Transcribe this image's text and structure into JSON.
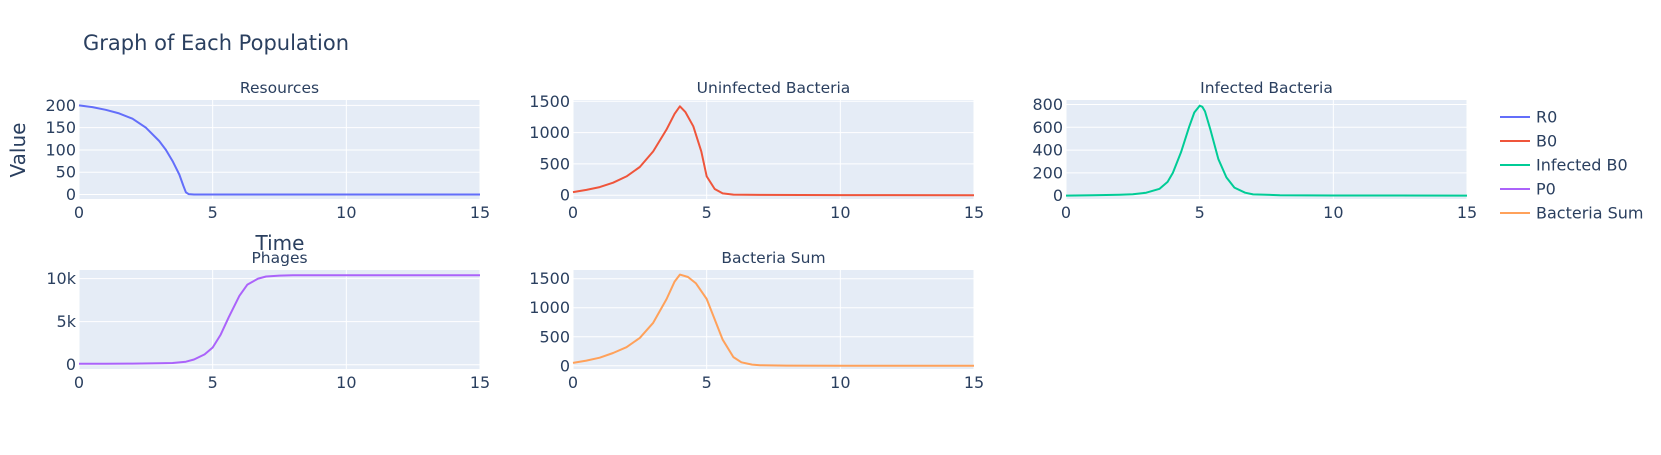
{
  "title": "Graph of Each Population",
  "x_axis_title": "Time",
  "y_axis_title": "Value",
  "colors": {
    "plot_bg": "#e5ecf6",
    "grid": "#ffffff",
    "text": "#2a3f5f"
  },
  "legend": [
    {
      "name": "R0",
      "color": "#636efa"
    },
    {
      "name": "B0",
      "color": "#ef553b"
    },
    {
      "name": "Infected B0",
      "color": "#00cc96"
    },
    {
      "name": "P0",
      "color": "#ab63fa"
    },
    {
      "name": "Bacteria Sum",
      "color": "#ffa15a"
    }
  ],
  "chart_data": [
    {
      "type": "line",
      "title": "Resources",
      "series": [
        {
          "name": "R0",
          "color": "#636efa",
          "x": [
            0,
            0.5,
            1,
            1.5,
            2,
            2.5,
            3,
            3.25,
            3.5,
            3.75,
            3.9,
            4,
            4.1,
            4.3,
            5,
            10,
            15
          ],
          "y": [
            200,
            196,
            190,
            182,
            170,
            150,
            120,
            100,
            75,
            45,
            20,
            5,
            1,
            0,
            0,
            0,
            0
          ]
        }
      ],
      "xlim": [
        0,
        15
      ],
      "ylim": [
        -10,
        212
      ],
      "xticks": [
        0,
        5,
        10,
        15
      ],
      "xtick_labels": [
        "0",
        "5",
        "10",
        "15"
      ],
      "yticks": [
        0,
        50,
        100,
        150,
        200
      ],
      "ytick_labels": [
        "0",
        "50",
        "100",
        "150",
        "200"
      ]
    },
    {
      "type": "line",
      "title": "Uninfected Bacteria",
      "series": [
        {
          "name": "B0",
          "color": "#ef553b",
          "x": [
            0,
            0.5,
            1,
            1.5,
            2,
            2.5,
            3,
            3.5,
            3.8,
            4,
            4.2,
            4.5,
            4.8,
            5,
            5.3,
            5.6,
            6,
            7,
            10,
            15
          ],
          "y": [
            50,
            85,
            130,
            200,
            300,
            450,
            700,
            1050,
            1300,
            1420,
            1330,
            1100,
            700,
            300,
            100,
            30,
            10,
            5,
            2,
            0
          ]
        }
      ],
      "xlim": [
        0,
        15
      ],
      "ylim": [
        -60,
        1520
      ],
      "xticks": [
        0,
        5,
        10,
        15
      ],
      "xtick_labels": [
        "0",
        "5",
        "10",
        "15"
      ],
      "yticks": [
        0,
        500,
        1000,
        1500
      ],
      "ytick_labels": [
        "0",
        "500",
        "1000",
        "1500"
      ]
    },
    {
      "type": "line",
      "title": "Infected Bacteria",
      "series": [
        {
          "name": "Infected B0",
          "color": "#00cc96",
          "x": [
            0,
            1,
            2,
            2.5,
            3,
            3.5,
            3.8,
            4,
            4.3,
            4.6,
            4.8,
            5,
            5.1,
            5.2,
            5.4,
            5.7,
            6,
            6.3,
            6.7,
            7,
            8,
            10,
            15
          ],
          "y": [
            0,
            3,
            8,
            12,
            25,
            60,
            120,
            200,
            380,
            600,
            730,
            790,
            780,
            740,
            580,
            320,
            160,
            70,
            25,
            10,
            3,
            1,
            0
          ]
        }
      ],
      "xlim": [
        0,
        15
      ],
      "ylim": [
        -30,
        840
      ],
      "xticks": [
        0,
        5,
        10,
        15
      ],
      "xtick_labels": [
        "0",
        "5",
        "10",
        "15"
      ],
      "yticks": [
        0,
        200,
        400,
        600,
        800
      ],
      "ytick_labels": [
        "0",
        "200",
        "400",
        "600",
        "800"
      ]
    },
    {
      "type": "line",
      "title": "Phages",
      "series": [
        {
          "name": "P0",
          "color": "#ab63fa",
          "x": [
            0,
            1,
            2,
            3,
            3.5,
            4,
            4.3,
            4.7,
            5,
            5.3,
            5.6,
            6,
            6.3,
            6.7,
            7,
            7.5,
            8,
            10,
            15
          ],
          "y": [
            100,
            110,
            130,
            160,
            200,
            350,
            600,
            1200,
            2000,
            3500,
            5500,
            8000,
            9300,
            10000,
            10250,
            10350,
            10380,
            10400,
            10400
          ]
        }
      ],
      "xlim": [
        0,
        15
      ],
      "ylim": [
        -500,
        11000
      ],
      "xticks": [
        0,
        5,
        10,
        15
      ],
      "xtick_labels": [
        "0",
        "5",
        "10",
        "15"
      ],
      "yticks": [
        0,
        5000,
        10000
      ],
      "ytick_labels": [
        "0",
        "5k",
        "10k"
      ]
    },
    {
      "type": "line",
      "title": "Bacteria Sum",
      "series": [
        {
          "name": "Bacteria Sum",
          "color": "#ffa15a",
          "x": [
            0,
            0.5,
            1,
            1.5,
            2,
            2.5,
            3,
            3.5,
            3.8,
            4,
            4.3,
            4.6,
            5,
            5.3,
            5.6,
            6,
            6.3,
            6.7,
            7,
            8,
            10,
            15
          ],
          "y": [
            50,
            90,
            140,
            220,
            320,
            480,
            740,
            1150,
            1450,
            1570,
            1530,
            1420,
            1150,
            800,
            450,
            150,
            60,
            20,
            10,
            3,
            1,
            0
          ]
        }
      ],
      "xlim": [
        0,
        15
      ],
      "ylim": [
        -55,
        1650
      ],
      "xticks": [
        0,
        5,
        10,
        15
      ],
      "xtick_labels": [
        "0",
        "5",
        "10",
        "15"
      ],
      "yticks": [
        0,
        500,
        1000,
        1500
      ],
      "ytick_labels": [
        "0",
        "500",
        "1000",
        "1500"
      ]
    }
  ]
}
